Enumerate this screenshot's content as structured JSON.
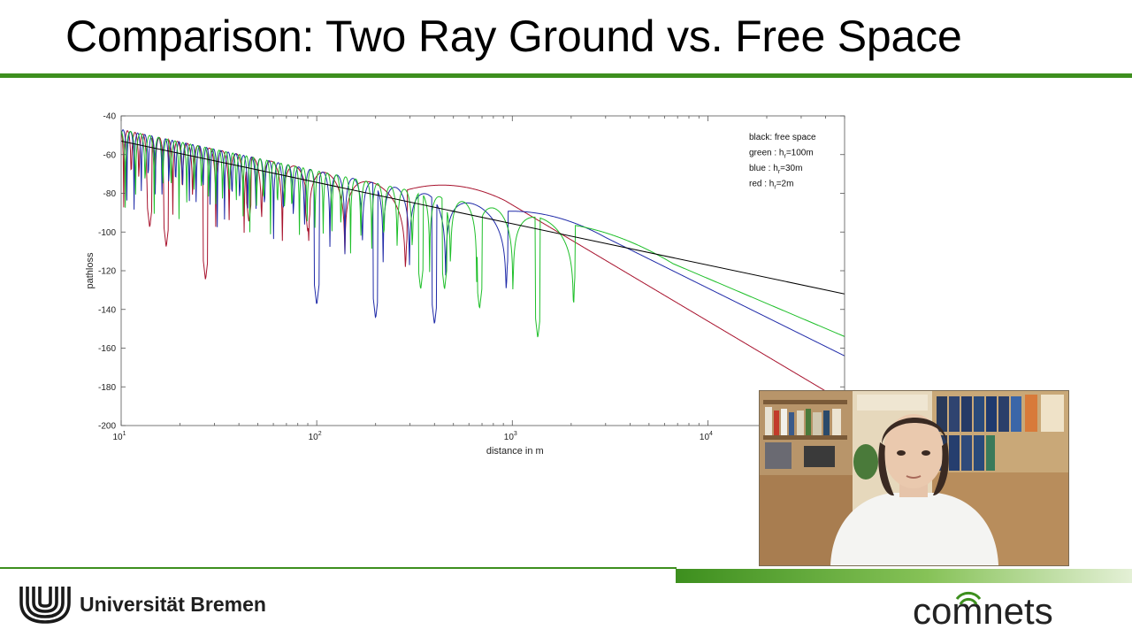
{
  "slide": {
    "title": "Comparison: Two Ray Ground vs. Free Space",
    "university": "Universität Bremen",
    "brand": "comnets"
  },
  "colors": {
    "accent_green": "#3d8f1e",
    "series_black": "#000000",
    "series_green": "#1fbf2a",
    "series_blue": "#1f2aa8",
    "series_red": "#a8132e"
  },
  "icons": {
    "university_logo": "university-bremen-logo",
    "webcam": "webcam-feed"
  },
  "chart_data": {
    "type": "line",
    "xlabel": "distance in m",
    "ylabel": "pathloss",
    "x_scale": "log",
    "xlim": [
      10,
      50000
    ],
    "ylim": [
      -200,
      -40
    ],
    "x_ticks": [
      {
        "value": 10,
        "base": "10",
        "exp": "1"
      },
      {
        "value": 100,
        "base": "10",
        "exp": "2"
      },
      {
        "value": 1000,
        "base": "10",
        "exp": "3"
      },
      {
        "value": 10000,
        "base": "10",
        "exp": "4"
      }
    ],
    "y_ticks": [
      -40,
      -60,
      -80,
      -100,
      -120,
      -140,
      -160,
      -180,
      -200
    ],
    "grid": false,
    "legend_position": "top-right",
    "legend": [
      {
        "prefix": "black: free space",
        "sub": "",
        "suffix": ""
      },
      {
        "prefix": "green   : h",
        "sub": "r",
        "suffix": "=100m"
      },
      {
        "prefix": "blue  : h",
        "sub": "r",
        "suffix": "=30m"
      },
      {
        "prefix": "red   : h",
        "sub": "r",
        "suffix": "=2m"
      }
    ],
    "series": [
      {
        "color": "#000000",
        "model": "free_space",
        "points": [
          [
            10,
            -53
          ],
          [
            50000,
            -132
          ]
        ]
      },
      {
        "color": "#a8132e",
        "model": "two_ray",
        "ht": 2,
        "breakpoint": 290,
        "far_anchor": [
          1000,
          -86
        ],
        "nulls": [
          [
            14,
            -98
          ],
          [
            17,
            -108
          ],
          [
            27,
            -125
          ],
          [
            45,
            -95
          ],
          [
            90,
            -100
          ]
        ],
        "end": [
          50000,
          -188
        ]
      },
      {
        "color": "#1f2aa8",
        "model": "two_ray",
        "ht": 30,
        "breakpoint": 950,
        "far_anchor": [
          2000,
          -94
        ],
        "nulls": [
          [
            100,
            -138
          ],
          [
            200,
            -145
          ],
          [
            400,
            -148
          ]
        ],
        "end": [
          50000,
          -164
        ]
      },
      {
        "color": "#1fbf2a",
        "model": "two_ray",
        "ht": 100,
        "breakpoint": 2100,
        "far_anchor": [
          2000,
          -94
        ],
        "nulls": [
          [
            340,
            -130
          ],
          [
            450,
            -130
          ],
          [
            680,
            -140
          ],
          [
            1350,
            -155
          ]
        ],
        "end": [
          50000,
          -154
        ]
      }
    ]
  }
}
